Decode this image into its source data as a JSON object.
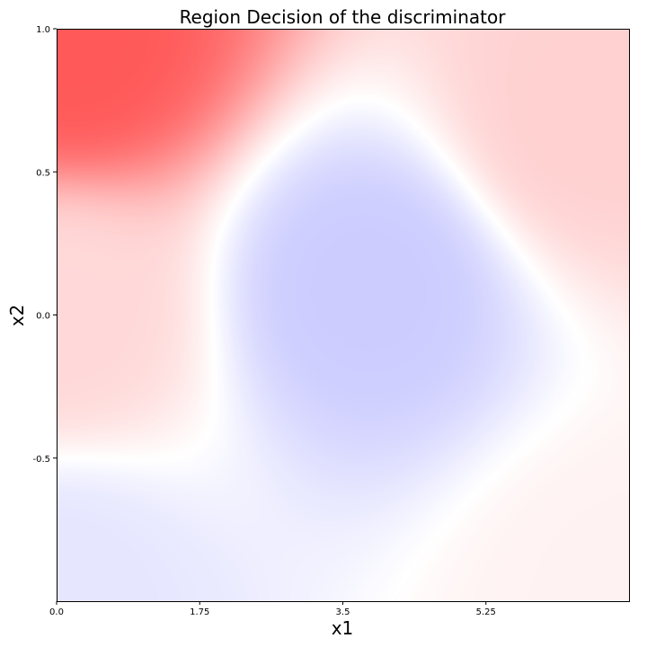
{
  "chart_data": {
    "type": "heatmap",
    "title": "Region Decision of the discriminator",
    "xlabel": "x1",
    "ylabel": "x2",
    "xlim": [
      0.0,
      7.0
    ],
    "ylim": [
      -1.0,
      1.0
    ],
    "x_ticks": [
      {
        "value": 0.0,
        "label": "0.0"
      },
      {
        "value": 1.75,
        "label": "1.75"
      },
      {
        "value": 3.5,
        "label": "3.5"
      },
      {
        "value": 5.25,
        "label": "5.25"
      }
    ],
    "y_ticks": [
      {
        "value": 1.0,
        "label": "1.0"
      },
      {
        "value": 0.5,
        "label": "0.5"
      },
      {
        "value": 0.0,
        "label": "0.0"
      },
      {
        "value": -0.5,
        "label": "-0.5"
      }
    ],
    "colormap": {
      "low": "#0000ff",
      "mid": "#ffffff",
      "high": "#ff0000"
    },
    "value_range": [
      -1.0,
      1.0
    ],
    "regions": [
      {
        "x": 0.2,
        "y": 0.95,
        "value": 0.65
      },
      {
        "x": 0.0,
        "y": 0.0,
        "value": 0.15
      },
      {
        "x": 6.5,
        "y": 0.7,
        "value": 0.18
      },
      {
        "x": 3.8,
        "y": 0.1,
        "value": -0.2
      },
      {
        "x": 0.0,
        "y": -0.95,
        "value": -0.1
      },
      {
        "x": 6.9,
        "y": -0.95,
        "value": 0.05
      }
    ]
  }
}
